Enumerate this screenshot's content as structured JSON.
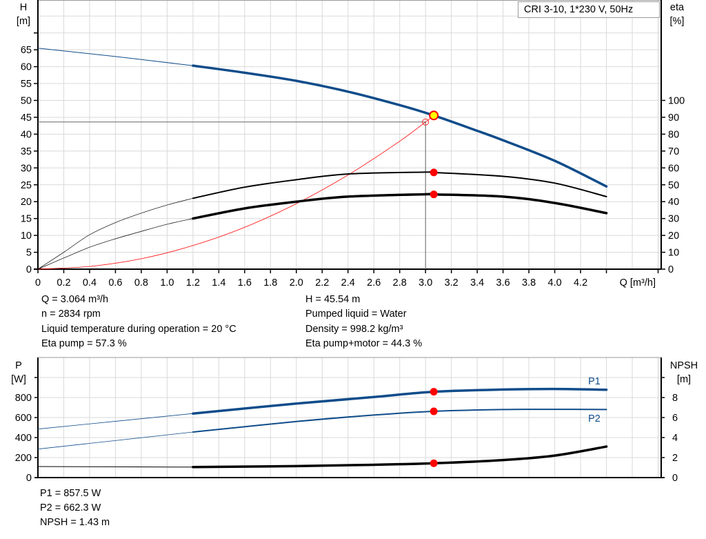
{
  "legend_box": "CRI 3-10, 1*230 V, 50Hz",
  "info_left": [
    "Q = 3.064 m³/h",
    "n = 2834 rpm",
    "Liquid temperature during operation = 20 °C",
    "Eta pump = 57.3 %"
  ],
  "info_right": [
    "H = 45.54 m",
    "Pumped liquid = Water",
    "Density = 998.2 kg/m³",
    "Eta pump+motor = 44.3 %"
  ],
  "info_bottom": [
    "P1 = 857.5 W",
    "P2 = 662.3 W",
    "NPSH = 1.43 m"
  ],
  "colors": {
    "head": "#0f4c8a",
    "eta": "#000000",
    "system": "#ff0000",
    "duty_point": "#ffff00",
    "marker": "#ff0000",
    "grid": "#d9d9d9"
  },
  "chart_data": [
    {
      "type": "line",
      "xlabel": "Q [m³/h]",
      "ylabel": "H\n[m]",
      "y2label": "eta\n[%]",
      "xlim": [
        0,
        4.8
      ],
      "ylim": [
        0,
        80
      ],
      "y2lim": [
        0,
        160
      ],
      "xticks": [
        "0",
        "0.2",
        "0.4",
        "0.6",
        "0.8",
        "1.0",
        "1.2",
        "1.4",
        "1.6",
        "1.8",
        "2.0",
        "2.2",
        "2.4",
        "2.6",
        "2.8",
        "3.0",
        "3.2",
        "3.4",
        "3.6",
        "3.8",
        "4.0",
        "4.2"
      ],
      "yticks": [
        0,
        5,
        10,
        15,
        20,
        25,
        30,
        35,
        40,
        45,
        50,
        55,
        60,
        65
      ],
      "y2ticks": [
        0,
        10,
        20,
        30,
        40,
        50,
        60,
        70,
        80,
        90,
        100
      ],
      "grid": true,
      "series": [
        {
          "key": "H",
          "axis": "left",
          "x": [
            0,
            0.6,
            1.2,
            1.6,
            2.0,
            2.4,
            2.8,
            3.064,
            3.4,
            3.6,
            4.0,
            4.4
          ],
          "y": [
            65.5,
            63,
            60.3,
            58.2,
            55.8,
            52.6,
            48.6,
            45.54,
            41,
            38.2,
            32.1,
            24.5
          ]
        },
        {
          "key": "eta_pump",
          "axis": "right",
          "x": [
            0,
            0.2,
            0.4,
            0.6,
            0.8,
            1.0,
            1.2,
            1.6,
            2.0,
            2.4,
            3.0,
            3.064,
            3.6,
            4.0,
            4.4
          ],
          "y": [
            0,
            10,
            20.4,
            27.6,
            33.2,
            38,
            42,
            48.6,
            53,
            56.4,
            57.5,
            57.3,
            55,
            51,
            43
          ]
        },
        {
          "key": "eta_pump_motor",
          "axis": "right",
          "x": [
            0,
            0.2,
            0.4,
            0.6,
            0.8,
            1.0,
            1.2,
            1.6,
            2.0,
            2.4,
            3.0,
            3.064,
            3.6,
            4.0,
            4.4
          ],
          "y": [
            0,
            6.6,
            13,
            18,
            22.4,
            26.6,
            30,
            36,
            40,
            43,
            44.4,
            44.3,
            43,
            39.2,
            33.2
          ]
        },
        {
          "key": "system",
          "axis": "left",
          "x": [
            0,
            0.4,
            0.8,
            1.2,
            1.6,
            2.0,
            2.4,
            2.8,
            3.0
          ],
          "y": [
            0,
            0.8,
            3.1,
            7,
            12.4,
            19.4,
            27.9,
            37.9,
            43.6
          ]
        }
      ],
      "duty_point": {
        "Q": 3.064,
        "H": 45.54
      },
      "system_point": {
        "Q": 3.0,
        "H": 43.6
      }
    },
    {
      "type": "line",
      "ylabel": "P\n[W]",
      "y2label": "NPSH\n[m]",
      "xlim": [
        0,
        4.8
      ],
      "ylim": [
        0,
        1200
      ],
      "y2lim": [
        0,
        12
      ],
      "yticks": [
        0,
        200,
        400,
        600,
        800
      ],
      "y2ticks": [
        0,
        2,
        4,
        6,
        8
      ],
      "grid": true,
      "series": [
        {
          "name": "P1",
          "axis": "left",
          "x": [
            0,
            1.2,
            2.0,
            2.6,
            3.064,
            3.6,
            4.0,
            4.4
          ],
          "y": [
            485,
            640,
            740,
            805,
            857.5,
            880,
            885,
            878
          ]
        },
        {
          "name": "P2",
          "axis": "left",
          "x": [
            0,
            1.2,
            2.0,
            2.6,
            3.064,
            3.6,
            4.0,
            4.4
          ],
          "y": [
            285,
            455,
            560,
            625,
            662.3,
            680,
            682,
            680
          ]
        },
        {
          "key": "NPSH",
          "axis": "right",
          "x": [
            0,
            1.2,
            2.0,
            2.6,
            3.064,
            3.6,
            4.0,
            4.4
          ],
          "y": [
            1.1,
            1.05,
            1.15,
            1.28,
            1.43,
            1.75,
            2.2,
            3.1
          ]
        }
      ]
    }
  ]
}
